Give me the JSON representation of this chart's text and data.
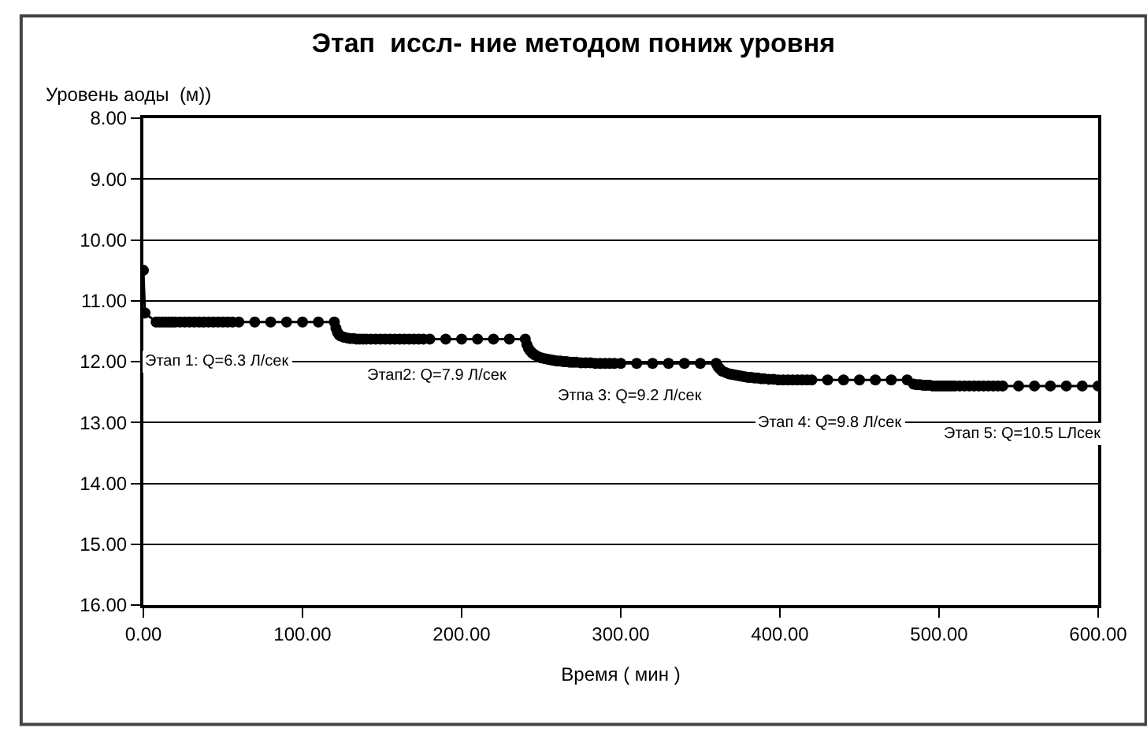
{
  "chart_data": {
    "type": "line",
    "title": "Этап  иссл- ние методом пониж уровня",
    "xlabel": "Время ( мин )",
    "ylabel": "Уровень аоды  (м))",
    "series": [
      {
        "color": "#000000",
        "x": [
          0,
          1,
          8,
          10,
          12,
          14,
          16,
          18,
          20,
          23,
          26,
          29,
          32,
          35,
          38,
          41,
          44,
          47,
          50,
          53,
          56,
          60,
          70,
          80,
          90,
          100,
          110,
          120,
          121,
          122,
          123,
          124,
          126,
          128,
          130,
          132,
          134,
          136,
          138,
          140,
          143,
          146,
          149,
          152,
          155,
          158,
          161,
          164,
          167,
          170,
          173,
          176,
          180,
          190,
          200,
          210,
          220,
          230,
          240,
          241,
          242,
          243,
          244,
          245,
          246,
          248,
          250,
          252,
          254,
          256,
          258,
          260,
          262,
          264,
          266,
          268,
          270,
          272,
          275,
          278,
          281,
          284,
          287,
          290,
          293,
          296,
          300,
          310,
          320,
          330,
          340,
          350,
          360,
          361,
          362,
          363,
          364,
          366,
          368,
          370,
          372,
          374,
          376,
          378,
          380,
          382,
          384,
          386,
          388,
          390,
          393,
          396,
          399,
          402,
          405,
          408,
          411,
          414,
          417,
          420,
          430,
          440,
          450,
          460,
          470,
          480,
          484,
          486,
          488,
          490,
          492,
          494,
          496,
          498,
          500,
          502,
          504,
          506,
          508,
          510,
          513,
          516,
          519,
          522,
          525,
          528,
          531,
          534,
          537,
          540,
          550,
          560,
          570,
          580,
          590,
          600
        ],
        "values": [
          10.5,
          11.2,
          11.35,
          11.35,
          11.35,
          11.35,
          11.35,
          11.35,
          11.35,
          11.35,
          11.35,
          11.35,
          11.35,
          11.35,
          11.35,
          11.35,
          11.35,
          11.35,
          11.35,
          11.35,
          11.35,
          11.35,
          11.35,
          11.35,
          11.35,
          11.35,
          11.35,
          11.35,
          11.45,
          11.52,
          11.56,
          11.58,
          11.6,
          11.61,
          11.62,
          11.62,
          11.63,
          11.63,
          11.63,
          11.63,
          11.63,
          11.63,
          11.63,
          11.63,
          11.63,
          11.63,
          11.63,
          11.63,
          11.63,
          11.63,
          11.63,
          11.63,
          11.63,
          11.63,
          11.63,
          11.63,
          11.63,
          11.63,
          11.63,
          11.72,
          11.78,
          11.82,
          11.85,
          11.87,
          11.89,
          11.92,
          11.94,
          11.95,
          11.96,
          11.97,
          11.98,
          11.99,
          11.99,
          12.0,
          12.0,
          12.01,
          12.01,
          12.01,
          12.02,
          12.02,
          12.02,
          12.03,
          12.03,
          12.03,
          12.03,
          12.03,
          12.03,
          12.03,
          12.03,
          12.03,
          12.03,
          12.03,
          12.03,
          12.08,
          12.11,
          12.14,
          12.16,
          12.18,
          12.2,
          12.21,
          12.22,
          12.23,
          12.24,
          12.25,
          12.26,
          12.26,
          12.27,
          12.27,
          12.28,
          12.28,
          12.29,
          12.29,
          12.3,
          12.3,
          12.3,
          12.3,
          12.3,
          12.3,
          12.3,
          12.3,
          12.3,
          12.3,
          12.3,
          12.3,
          12.3,
          12.3,
          12.37,
          12.38,
          12.38,
          12.39,
          12.39,
          12.39,
          12.4,
          12.4,
          12.4,
          12.4,
          12.4,
          12.4,
          12.4,
          12.4,
          12.4,
          12.4,
          12.4,
          12.4,
          12.4,
          12.4,
          12.4,
          12.4,
          12.4,
          12.4,
          12.4,
          12.4,
          12.4,
          12.4,
          12.4,
          12.4
        ]
      }
    ],
    "marker": "circle",
    "line_style": "solid",
    "xlim": [
      0,
      600
    ],
    "xticks": [
      {
        "value": 0,
        "label": "0.00"
      },
      {
        "value": 100,
        "label": "100.00"
      },
      {
        "value": 200,
        "label": "200.00"
      },
      {
        "value": 300,
        "label": "300.00"
      },
      {
        "value": 400,
        "label": "400.00"
      },
      {
        "value": 500,
        "label": "500.00"
      },
      {
        "value": 600,
        "label": "600.00"
      }
    ],
    "ylim": [
      16,
      8
    ],
    "yticks": [
      {
        "value": 8,
        "label": "8.00"
      },
      {
        "value": 9,
        "label": "9.00"
      },
      {
        "value": 10,
        "label": "10.00"
      },
      {
        "value": 11,
        "label": "11.00"
      },
      {
        "value": 12,
        "label": "12.00"
      },
      {
        "value": 13,
        "label": "13.00"
      },
      {
        "value": 14,
        "label": "14.00"
      },
      {
        "value": 15,
        "label": "15.00"
      },
      {
        "value": 16,
        "label": "16.00"
      }
    ],
    "grid": "y",
    "annotations": [
      "Этап 1: Q=6.3 Л/сек",
      "Этап2: Q=7.9 Л/сек",
      "Этпа 3: Q=9.2 Л/сек",
      "Этап 4: Q=9.8 Л/сек",
      "Этап 5: Q=10.5 LЛсек"
    ]
  }
}
